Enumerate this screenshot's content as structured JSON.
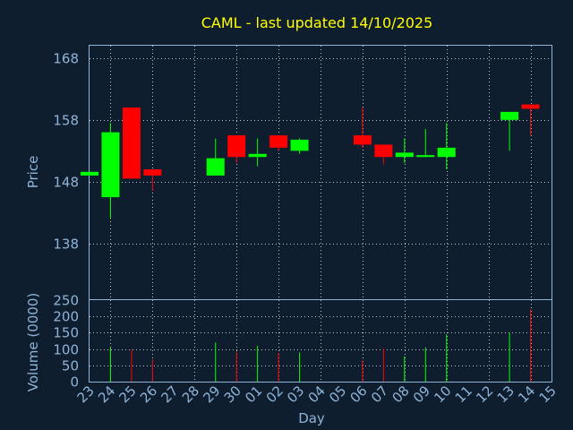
{
  "chart_data": [
    {
      "type": "candlestick",
      "title": "CAML - last updated 14/10/2025",
      "ylabel": "Price",
      "xlabel": "Day",
      "ylim": [
        129,
        170
      ],
      "yticks": [
        138,
        148,
        158,
        168
      ],
      "grid": true,
      "colors": {
        "up": "#00ff00",
        "down": "#ff0000",
        "text": "#8fb4d8",
        "title": "#ffff00",
        "background": "#0f1e2e"
      },
      "days": [
        "23",
        "24",
        "25",
        "26",
        "27",
        "28",
        "29",
        "30",
        "01",
        "02",
        "03",
        "04",
        "05",
        "06",
        "07",
        "08",
        "09",
        "10",
        "11",
        "12",
        "13",
        "14",
        "15"
      ],
      "candles": [
        {
          "day": "23",
          "open": 149.0,
          "close": 149.6,
          "high": 149.6,
          "low": 149.0
        },
        {
          "day": "24",
          "open": 145.5,
          "close": 156.0,
          "high": 157.5,
          "low": 142.0
        },
        {
          "day": "25",
          "open": 160.0,
          "close": 148.5,
          "high": 160.0,
          "low": 148.5
        },
        {
          "day": "26",
          "open": 150.0,
          "close": 149.0,
          "high": 150.0,
          "low": 146.5
        },
        {
          "day": "29",
          "open": 149.0,
          "close": 151.8,
          "high": 155.0,
          "low": 149.0
        },
        {
          "day": "30",
          "open": 155.5,
          "close": 152.0,
          "high": 155.5,
          "low": 151.0
        },
        {
          "day": "01",
          "open": 152.0,
          "close": 152.5,
          "high": 155.0,
          "low": 150.5
        },
        {
          "day": "02",
          "open": 155.5,
          "close": 153.5,
          "high": 155.5,
          "low": 153.0
        },
        {
          "day": "03",
          "open": 153.0,
          "close": 154.8,
          "high": 155.0,
          "low": 152.5
        },
        {
          "day": "06",
          "open": 155.5,
          "close": 154.0,
          "high": 160.0,
          "low": 153.5
        },
        {
          "day": "07",
          "open": 154.0,
          "close": 152.0,
          "high": 154.0,
          "low": 150.8
        },
        {
          "day": "08",
          "open": 152.0,
          "close": 152.7,
          "high": 155.0,
          "low": 151.0
        },
        {
          "day": "09",
          "open": 152.0,
          "close": 152.3,
          "high": 156.5,
          "low": 152.0
        },
        {
          "day": "10",
          "open": 152.0,
          "close": 153.5,
          "high": 157.5,
          "low": 150.0
        },
        {
          "day": "13",
          "open": 158.0,
          "close": 159.3,
          "high": 159.3,
          "low": 153.0
        },
        {
          "day": "14",
          "open": 160.5,
          "close": 159.8,
          "high": 160.5,
          "low": 155.5
        }
      ]
    },
    {
      "type": "bar",
      "ylabel": "Volume (0000)",
      "ylim": [
        0,
        250
      ],
      "yticks": [
        0,
        50,
        100,
        150,
        200,
        250
      ],
      "bars": [
        {
          "day": "24",
          "value": 105,
          "direction": "up"
        },
        {
          "day": "25",
          "value": 98,
          "direction": "down"
        },
        {
          "day": "26",
          "value": 68,
          "direction": "down"
        },
        {
          "day": "29",
          "value": 120,
          "direction": "up"
        },
        {
          "day": "30",
          "value": 92,
          "direction": "down"
        },
        {
          "day": "01",
          "value": 110,
          "direction": "up"
        },
        {
          "day": "02",
          "value": 88,
          "direction": "down"
        },
        {
          "day": "03",
          "value": 90,
          "direction": "up"
        },
        {
          "day": "06",
          "value": 65,
          "direction": "down"
        },
        {
          "day": "07",
          "value": 102,
          "direction": "down"
        },
        {
          "day": "08",
          "value": 78,
          "direction": "up"
        },
        {
          "day": "09",
          "value": 105,
          "direction": "up"
        },
        {
          "day": "10",
          "value": 145,
          "direction": "up"
        },
        {
          "day": "13",
          "value": 150,
          "direction": "up"
        },
        {
          "day": "14",
          "value": 222,
          "direction": "down"
        }
      ]
    }
  ]
}
